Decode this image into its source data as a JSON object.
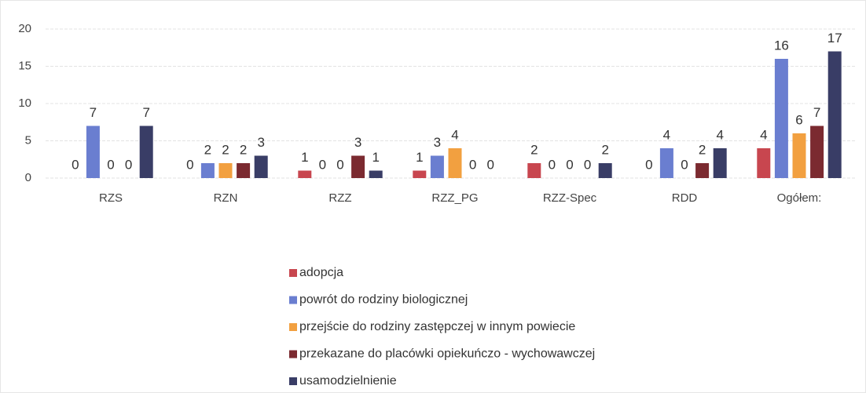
{
  "chart_data": {
    "type": "bar",
    "categories": [
      "RZS",
      "RZN",
      "RZZ",
      "RZZ_PG",
      "RZZ-Spec",
      "RDD",
      "Ogółem:"
    ],
    "series": [
      {
        "name": "adopcja",
        "color": "#c8464f",
        "values": [
          0,
          0,
          1,
          1,
          2,
          0,
          4
        ]
      },
      {
        "name": "powrót do rodziny biologicznej",
        "color": "#6a7ed0",
        "values": [
          7,
          2,
          0,
          3,
          0,
          4,
          16
        ]
      },
      {
        "name": "przejście do rodziny zastępczej w innym powiecie",
        "color": "#f2a040",
        "values": [
          0,
          2,
          0,
          4,
          0,
          0,
          6
        ]
      },
      {
        "name": "przekazane do placówki opiekuńczo - wychowawczej",
        "color": "#7b2a30",
        "values": [
          0,
          2,
          3,
          0,
          0,
          2,
          7
        ]
      },
      {
        "name": "usamodzielnienie",
        "color": "#393d66",
        "values": [
          7,
          3,
          1,
          0,
          2,
          4,
          17
        ]
      }
    ],
    "ylim": [
      0,
      20
    ],
    "yticks": [
      0,
      5,
      10,
      15,
      20
    ],
    "grid": true,
    "legend": "bottom"
  }
}
